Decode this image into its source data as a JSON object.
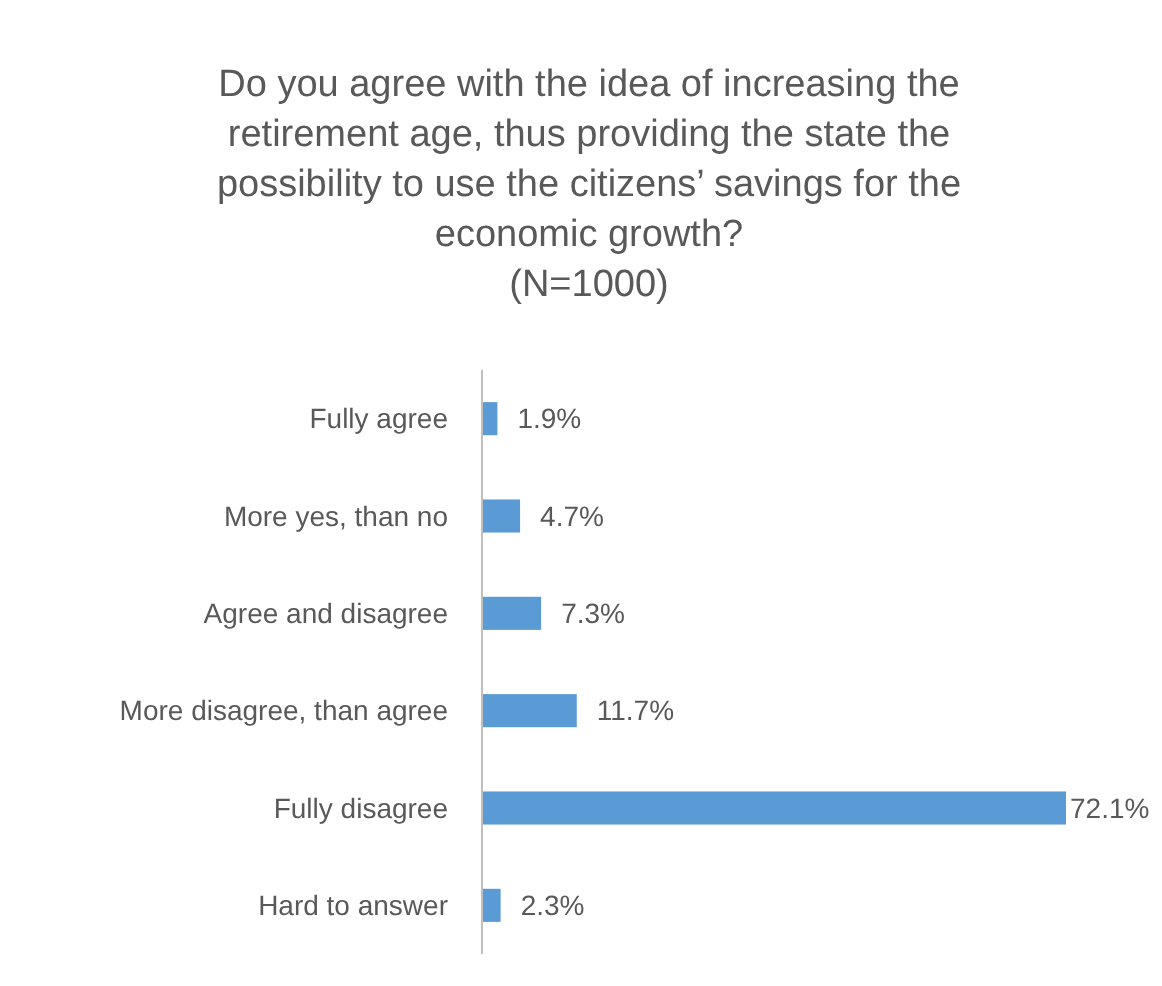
{
  "chart_data": {
    "type": "bar",
    "orientation": "horizontal",
    "title": "Do you agree with the idea of increasing the\nretirement age, thus providing the state the\npossibility to use the citizens’ savings for the\neconomic growth?",
    "subtitle": "(N=1000)",
    "categories": [
      "Fully agree",
      "More yes, than no",
      "Agree and disagree",
      "More disagree, than agree",
      "Fully disagree",
      "Hard to answer"
    ],
    "values": [
      1.9,
      4.7,
      7.3,
      11.7,
      72.1,
      2.3
    ],
    "value_labels": [
      "1.9%",
      "4.7%",
      "7.3%",
      "11.7%",
      "72.1%",
      "2.3%"
    ],
    "color": "#5b9bd5"
  }
}
